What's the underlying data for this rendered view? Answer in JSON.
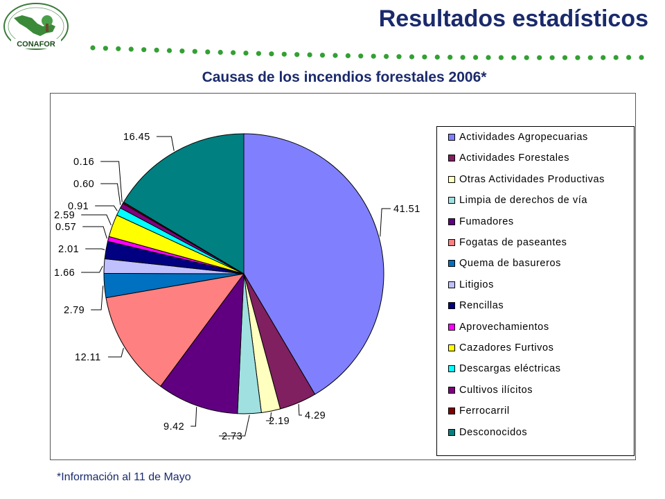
{
  "header": {
    "title": "Resultados estadísticos",
    "logo_text": "CONAFOR"
  },
  "chart_title": "Causas de los incendios forestales 2006*",
  "footnote": "*Información al 11 de Mayo",
  "chart_data": {
    "type": "pie",
    "title": "Causas de los incendios forestales 2006*",
    "legend_position": "right",
    "start_angle": "12 o'clock, clockwise",
    "categories": [
      "Actividades Agropecuarias",
      "Actividades Forestales",
      "Otras Actividades Productivas",
      "Limpia de derechos de vía",
      "Fumadores",
      "Fogatas de paseantes",
      "Quema de basureros",
      "Litigios",
      "Rencillas",
      "Aprovechamientos",
      "Cazadores Furtivos",
      "Descargas eléctricas",
      "Cultivos ilícitos",
      "Ferrocarril",
      "Desconocidos"
    ],
    "values": [
      41.51,
      4.29,
      2.19,
      2.73,
      9.42,
      12.11,
      2.79,
      1.66,
      2.01,
      0.57,
      2.59,
      0.91,
      0.6,
      0.16,
      16.45
    ],
    "value_labels": [
      "41.51",
      "4.29",
      "2.19",
      "2.73",
      "9.42",
      "12.11",
      "2.79",
      "1.66",
      "2.01",
      "0.57",
      "2.59",
      "0.91",
      "0.60",
      "0.16",
      "16.45"
    ],
    "colors": [
      "#8080ff",
      "#802060",
      "#ffffc0",
      "#a0e0e0",
      "#600080",
      "#ff8080",
      "#0070c0",
      "#c0c0ff",
      "#000080",
      "#ff00ff",
      "#ffff00",
      "#00ffff",
      "#800080",
      "#800000",
      "#008080"
    ]
  }
}
